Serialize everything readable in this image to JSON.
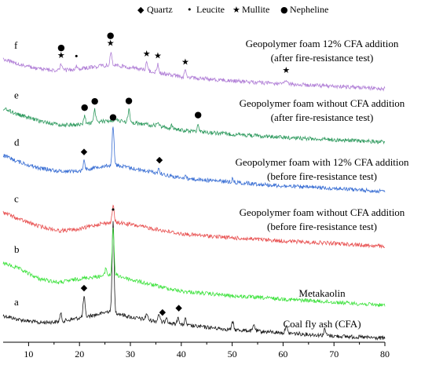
{
  "chart_data": {
    "type": "line",
    "title": "",
    "xlabel": "",
    "ylabel": "",
    "xlim": [
      5,
      80
    ],
    "x_ticks": [
      10,
      20,
      30,
      40,
      50,
      60,
      70,
      80
    ],
    "legend": [
      {
        "symbol": "◆",
        "name": "Quartz",
        "marker": "quartz"
      },
      {
        "symbol": "•",
        "name": "Leucite",
        "marker": "leucite"
      },
      {
        "symbol": "★",
        "name": "Mullite",
        "marker": "mullite"
      },
      {
        "symbol": "●",
        "name": "Nepheline",
        "marker": "nepheline"
      }
    ],
    "series": [
      {
        "letter": "a",
        "label": "Coal fly ash (CFA)",
        "color": "#1a1a1a",
        "points": [
          [
            5,
            402
          ],
          [
            8,
            407
          ],
          [
            12,
            411
          ],
          [
            16,
            410
          ],
          [
            20,
            405
          ],
          [
            24,
            400
          ],
          [
            26,
            396
          ],
          [
            30,
            404
          ],
          [
            40,
            414
          ],
          [
            50,
            420
          ],
          [
            60,
            424
          ],
          [
            70,
            428
          ],
          [
            80,
            431
          ]
        ],
        "peaks": [
          [
            16.3,
            10
          ],
          [
            20.9,
            26
          ],
          [
            26.6,
            118
          ],
          [
            33.2,
            8
          ],
          [
            35.6,
            10
          ],
          [
            37.1,
            8
          ],
          [
            39.4,
            10
          ],
          [
            40.8,
            8
          ],
          [
            50.1,
            10
          ],
          [
            54.3,
            8
          ],
          [
            60.6,
            10
          ],
          [
            68.2,
            8
          ]
        ],
        "markers": [
          {
            "x": 20.9,
            "type": "quartz"
          },
          {
            "x": 26.6,
            "type": "leucite"
          },
          {
            "x": 36.3,
            "type": "quartz"
          },
          {
            "x": 39.5,
            "type": "quartz"
          }
        ]
      },
      {
        "letter": "b",
        "label": "Metakaolin",
        "color": "#3de23d",
        "points": [
          [
            5,
            335
          ],
          [
            8,
            342
          ],
          [
            12,
            355
          ],
          [
            16,
            360
          ],
          [
            20,
            355
          ],
          [
            24,
            352
          ],
          [
            27,
            350
          ],
          [
            30,
            356
          ],
          [
            35,
            364
          ],
          [
            40,
            371
          ],
          [
            50,
            377
          ],
          [
            60,
            381
          ],
          [
            70,
            385
          ],
          [
            80,
            389
          ]
        ],
        "peaks": [
          [
            26.6,
            60
          ],
          [
            25.2,
            10
          ]
        ],
        "markers": []
      },
      {
        "letter": "c",
        "label": "Geopolymer foam without CFA addition\n(before fire-resistance test)",
        "color": "#e85050",
        "points": [
          [
            5,
            270
          ],
          [
            8,
            279
          ],
          [
            12,
            288
          ],
          [
            16,
            294
          ],
          [
            20,
            292
          ],
          [
            24,
            285
          ],
          [
            27,
            283
          ],
          [
            30,
            286
          ],
          [
            35,
            292
          ],
          [
            40,
            298
          ],
          [
            50,
            303
          ],
          [
            60,
            307
          ],
          [
            70,
            310
          ],
          [
            80,
            314
          ]
        ],
        "peaks": [
          [
            26.6,
            22
          ]
        ],
        "markers": []
      },
      {
        "letter": "d",
        "label": "Geopolymer foam with 12% CFA addition\n(before fire-resistance test)",
        "color": "#3a6fd4",
        "points": [
          [
            5,
            198
          ],
          [
            8,
            206
          ],
          [
            12,
            214
          ],
          [
            16,
            218
          ],
          [
            20,
            218
          ],
          [
            24,
            212
          ],
          [
            27,
            210
          ],
          [
            30,
            214
          ],
          [
            35,
            220
          ],
          [
            40,
            227
          ],
          [
            50,
            232
          ],
          [
            60,
            237
          ],
          [
            70,
            240
          ],
          [
            80,
            244
          ]
        ],
        "peaks": [
          [
            20.9,
            12
          ],
          [
            26.6,
            50
          ],
          [
            35.6,
            6
          ],
          [
            40.8,
            4
          ],
          [
            50.1,
            4
          ]
        ],
        "markers": [
          {
            "x": 20.9,
            "type": "quartz"
          },
          {
            "x": 26.6,
            "type": "nepheline"
          },
          {
            "x": 35.7,
            "type": "quartz"
          }
        ]
      },
      {
        "letter": "e",
        "label": "Geopolymer foam without CFA addition\n(after fire-resistance test)",
        "color": "#2e9a5e",
        "points": [
          [
            5,
            138
          ],
          [
            8,
            146
          ],
          [
            12,
            154
          ],
          [
            16,
            159
          ],
          [
            20,
            159
          ],
          [
            24,
            155
          ],
          [
            27,
            153
          ],
          [
            30,
            156
          ],
          [
            35,
            160
          ],
          [
            40,
            166
          ],
          [
            50,
            171
          ],
          [
            60,
            175
          ],
          [
            70,
            178
          ],
          [
            80,
            181
          ]
        ],
        "peaks": [
          [
            21.0,
            10
          ],
          [
            23.0,
            16
          ],
          [
            29.7,
            16
          ],
          [
            35.4,
            5
          ],
          [
            38.1,
            4
          ],
          [
            43.3,
            10
          ]
        ],
        "markers": [
          {
            "x": 21.0,
            "type": "nepheline"
          },
          {
            "x": 23.0,
            "type": "nepheline"
          },
          {
            "x": 29.7,
            "type": "nepheline"
          },
          {
            "x": 43.3,
            "type": "nepheline"
          }
        ]
      },
      {
        "letter": "f",
        "label": "Geopolymer foam 12% CFA addition\n(after fire-resistance test)",
        "color": "#b07ed6",
        "points": [
          [
            5,
            75
          ],
          [
            8,
            82
          ],
          [
            12,
            88
          ],
          [
            16,
            90
          ],
          [
            20,
            88
          ],
          [
            24,
            84
          ],
          [
            27,
            83
          ],
          [
            30,
            86
          ],
          [
            35,
            92
          ],
          [
            40,
            98
          ],
          [
            50,
            103
          ],
          [
            60,
            107
          ],
          [
            70,
            110
          ],
          [
            80,
            113
          ]
        ],
        "peaks": [
          [
            16.4,
            8
          ],
          [
            19.3,
            5
          ],
          [
            26.2,
            17
          ],
          [
            33.2,
            10
          ],
          [
            35.4,
            10
          ],
          [
            40.8,
            8
          ],
          [
            60.6,
            6
          ]
        ],
        "markers": [
          {
            "x": 16.4,
            "type": "mullite"
          },
          {
            "x": 16.4,
            "type": "nepheline"
          },
          {
            "x": 19.4,
            "type": "leucite"
          },
          {
            "x": 26.1,
            "type": "mullite"
          },
          {
            "x": 26.1,
            "type": "nepheline"
          },
          {
            "x": 33.2,
            "type": "mullite"
          },
          {
            "x": 35.4,
            "type": "mullite"
          },
          {
            "x": 40.8,
            "type": "mullite"
          },
          {
            "x": 60.6,
            "type": "mullite"
          }
        ]
      }
    ]
  }
}
